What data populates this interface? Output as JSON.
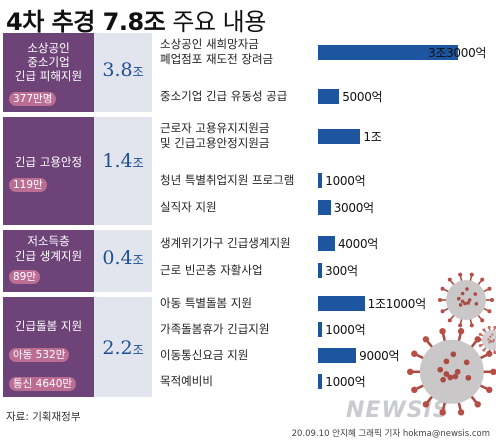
{
  "title": {
    "bold": "4차 추경 7.8조",
    "rest": " 주요 내용"
  },
  "colors": {
    "category": "#6e4478",
    "badge": "#bb6d93",
    "amount_bg": "#e2e5ee",
    "bar": "#1d55a0",
    "amount_text": "#1e4f94"
  },
  "icons": [
    "coronavirus-icon"
  ],
  "chart_data": {
    "type": "bar",
    "orientation": "horizontal",
    "title": "4차 추경 7.8조 주요 내용",
    "groups": [
      {
        "name_lines": [
          "소상공인",
          "중소기업",
          "긴급 피해지원"
        ],
        "badges": [
          "377만명"
        ],
        "amount_num": "3.8",
        "amount_unit": "조",
        "items": [
          {
            "label_lines": [
              "소상공인 새희망자금",
              "폐업점포 재도전 장려금"
            ],
            "value": 3.3,
            "value_label": "3조3000억"
          },
          {
            "label_lines": [
              "중소기업 긴급 유동성 공급"
            ],
            "value": 0.5,
            "value_label": "5000억"
          }
        ]
      },
      {
        "name_lines": [
          "긴급 고용안정"
        ],
        "badges": [
          "119만"
        ],
        "amount_num": "1.4",
        "amount_unit": "조",
        "items": [
          {
            "label_lines": [
              "근로자 고용유지지원금",
              "및 긴급고용안정지원금"
            ],
            "value": 1.0,
            "value_label": "1조"
          },
          {
            "label_lines": [
              "청년 특별취업지원 프로그램"
            ],
            "value": 0.1,
            "value_label": "1000억"
          },
          {
            "label_lines": [
              "실직자 지원"
            ],
            "value": 0.3,
            "value_label": "3000억"
          }
        ]
      },
      {
        "name_lines": [
          "저소득층",
          "긴급 생계지원"
        ],
        "badges": [
          "89만"
        ],
        "amount_num": "0.4",
        "amount_unit": "조",
        "items": [
          {
            "label_lines": [
              "생계위기가구 긴급생계지원"
            ],
            "value": 0.4,
            "value_label": "4000억"
          },
          {
            "label_lines": [
              "근로 빈곤층 자활사업"
            ],
            "value": 0.03,
            "value_label": "300억"
          }
        ]
      },
      {
        "name_lines": [
          "긴급돌봄 지원"
        ],
        "badges": [
          "아동 532만",
          "통신 4640만"
        ],
        "amount_num": "2.2",
        "amount_unit": "조",
        "items": [
          {
            "label_lines": [
              "아동 특별돌봄 지원"
            ],
            "value": 1.1,
            "value_label": "1조1000억"
          },
          {
            "label_lines": [
              "가족돌봄휴가 긴급지원"
            ],
            "value": 0.1,
            "value_label": "1000억"
          },
          {
            "label_lines": [
              "이동통신요금 지원"
            ],
            "value": 0.9,
            "value_label": "9000억"
          },
          {
            "label_lines": [
              "목적예비비"
            ],
            "value": 0.1,
            "value_label": "1000억"
          }
        ]
      }
    ]
  },
  "source": "자료: 기획재정부",
  "credit": "20.09.10 안지혜 그래픽 기자 hokma@newsis.com",
  "logo": "NEWSIS"
}
